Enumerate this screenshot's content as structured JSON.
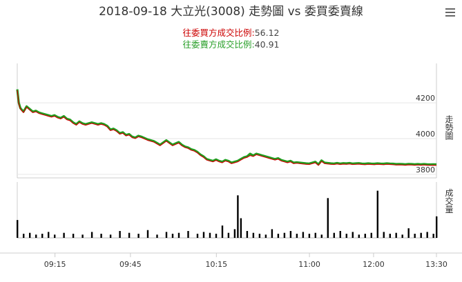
{
  "title": "2018-09-18 大立光(3008) 走勢圖 vs 委買委賣線",
  "ratio_buy_label": "往委買方成交比例:",
  "ratio_buy_value": "56.12",
  "ratio_sell_label": "往委賣方成交比例:",
  "ratio_sell_value": "40.91",
  "menu_icon": "hamburger-menu-icon",
  "colors": {
    "price_line": "#cc0000",
    "order_line": "#1f9e1f",
    "volume": "#000000",
    "grid": "#e6e6e6",
    "axis_text": "#333333"
  },
  "chart_data": {
    "type": "line",
    "x_ticks": [
      "09:15",
      "09:45",
      "10:15",
      "11:00",
      "12:00",
      "13:30"
    ],
    "price_axis": {
      "ylabel": "走勢圖",
      "ticks": [
        3800,
        4000,
        4200
      ],
      "ylim": [
        3780,
        4420
      ]
    },
    "volume_axis": {
      "ylabel": "成交量"
    },
    "series": [
      {
        "key": "price",
        "x": [
          0,
          1,
          2,
          4,
          6,
          8,
          10,
          12,
          14,
          16,
          18,
          20,
          22,
          24,
          26,
          28,
          30,
          32,
          34,
          36,
          38,
          40,
          42,
          44,
          46,
          48,
          50,
          52,
          54,
          56,
          58,
          60,
          62,
          64,
          66,
          68,
          70,
          72,
          74,
          76,
          78,
          80,
          84,
          88,
          92,
          96,
          100,
          104,
          106,
          108,
          110,
          112,
          114,
          116,
          118,
          120,
          122,
          124,
          126,
          128,
          130,
          132,
          134,
          136,
          138,
          140,
          142,
          144,
          146,
          148,
          150,
          152,
          154,
          156,
          158,
          160,
          162,
          164,
          166,
          168,
          170,
          172,
          174,
          176,
          178,
          180,
          182,
          184,
          186,
          188,
          190,
          192,
          194,
          196,
          198,
          200,
          202,
          204,
          206,
          208,
          210,
          212,
          214,
          216,
          218,
          220,
          222,
          224,
          226,
          228,
          230,
          232,
          234,
          236,
          238,
          240,
          242,
          244,
          246,
          248,
          250,
          252,
          254,
          256,
          258,
          260,
          262,
          264,
          266,
          268,
          270
        ],
        "values": [
          4270,
          4195,
          4165,
          4145,
          4175,
          4160,
          4145,
          4150,
          4140,
          4135,
          4130,
          4125,
          4120,
          4125,
          4115,
          4110,
          4120,
          4105,
          4100,
          4085,
          4075,
          4090,
          4080,
          4075,
          4080,
          4085,
          4080,
          4075,
          4080,
          4075,
          4065,
          4045,
          4050,
          4040,
          4025,
          4030,
          4015,
          4020,
          4005,
          4000,
          4010,
          4005,
          3990,
          3980,
          3960,
          3985,
          3960,
          3975,
          3960,
          3950,
          3945,
          3935,
          3930,
          3920,
          3905,
          3895,
          3880,
          3875,
          3870,
          3878,
          3870,
          3865,
          3875,
          3870,
          3860,
          3865,
          3870,
          3880,
          3890,
          3895,
          3905,
          3900,
          3910,
          3905,
          3900,
          3895,
          3890,
          3885,
          3880,
          3885,
          3875,
          3870,
          3865,
          3870,
          3860,
          3862,
          3860,
          3858,
          3856,
          3855,
          3860,
          3865,
          3850,
          3872,
          3860,
          3858,
          3856,
          3855,
          3858,
          3855,
          3857,
          3856,
          3858,
          3855,
          3856,
          3857,
          3855,
          3854,
          3856,
          3855,
          3854,
          3856,
          3855,
          3854,
          3856,
          3855,
          3854,
          3852,
          3853,
          3852,
          3851,
          3853,
          3852,
          3851,
          3852,
          3851,
          3852,
          3851,
          3850,
          3851,
          3850
        ]
      },
      {
        "key": "order_line",
        "x": [
          0,
          1,
          2,
          4,
          6,
          8,
          10,
          12,
          14,
          16,
          18,
          20,
          22,
          24,
          26,
          28,
          30,
          32,
          34,
          36,
          38,
          40,
          42,
          44,
          46,
          48,
          50,
          52,
          54,
          56,
          58,
          60,
          62,
          64,
          66,
          68,
          70,
          72,
          74,
          76,
          78,
          80,
          84,
          88,
          92,
          96,
          100,
          104,
          106,
          108,
          110,
          112,
          114,
          116,
          118,
          120,
          122,
          124,
          126,
          128,
          130,
          132,
          134,
          136,
          138,
          140,
          142,
          144,
          146,
          148,
          150,
          152,
          154,
          156,
          158,
          160,
          162,
          164,
          166,
          168,
          170,
          172,
          174,
          176,
          178,
          180,
          182,
          184,
          186,
          188,
          190,
          192,
          194,
          196,
          198,
          200,
          202,
          204,
          206,
          208,
          210,
          212,
          214,
          216,
          218,
          220,
          222,
          224,
          226,
          228,
          230,
          232,
          234,
          236,
          238,
          240,
          242,
          244,
          246,
          248,
          250,
          252,
          254,
          256,
          258,
          260,
          262,
          264,
          266,
          268,
          270
        ],
        "values": [
          4275,
          4200,
          4170,
          4150,
          4180,
          4165,
          4150,
          4155,
          4145,
          4140,
          4135,
          4130,
          4125,
          4130,
          4120,
          4115,
          4125,
          4110,
          4105,
          4090,
          4080,
          4095,
          4085,
          4080,
          4085,
          4090,
          4085,
          4080,
          4085,
          4080,
          4070,
          4050,
          4055,
          4045,
          4030,
          4035,
          4020,
          4025,
          4010,
          4005,
          4015,
          4010,
          3995,
          3985,
          3965,
          3990,
          3965,
          3980,
          3965,
          3955,
          3950,
          3940,
          3935,
          3925,
          3910,
          3900,
          3885,
          3880,
          3875,
          3883,
          3875,
          3870,
          3880,
          3875,
          3865,
          3870,
          3875,
          3885,
          3895,
          3900,
          3915,
          3905,
          3915,
          3910,
          3905,
          3900,
          3895,
          3890,
          3885,
          3890,
          3880,
          3875,
          3870,
          3875,
          3865,
          3867,
          3865,
          3863,
          3861,
          3860,
          3865,
          3870,
          3855,
          3877,
          3865,
          3863,
          3861,
          3860,
          3863,
          3860,
          3862,
          3861,
          3863,
          3860,
          3861,
          3862,
          3860,
          3859,
          3861,
          3860,
          3859,
          3861,
          3860,
          3859,
          3861,
          3860,
          3859,
          3857,
          3858,
          3857,
          3856,
          3858,
          3857,
          3856,
          3857,
          3856,
          3857,
          3856,
          3855,
          3856,
          3855
        ]
      }
    ],
    "volume": {
      "x": [
        0,
        4,
        8,
        12,
        16,
        20,
        24,
        30,
        36,
        42,
        48,
        54,
        60,
        66,
        72,
        78,
        84,
        90,
        96,
        100,
        104,
        110,
        116,
        120,
        124,
        128,
        132,
        136,
        140,
        142,
        144,
        148,
        152,
        156,
        160,
        164,
        168,
        172,
        176,
        180,
        184,
        188,
        192,
        196,
        200,
        204,
        208,
        212,
        216,
        220,
        224,
        228,
        232,
        236,
        240,
        244,
        248,
        252,
        256,
        260,
        264,
        268,
        270
      ],
      "values": [
        18,
        3,
        4,
        2,
        3,
        5,
        2,
        4,
        3,
        2,
        5,
        3,
        2,
        6,
        4,
        3,
        7,
        2,
        5,
        3,
        4,
        6,
        3,
        5,
        4,
        3,
        12,
        4,
        8,
        45,
        20,
        6,
        4,
        3,
        2,
        8,
        3,
        4,
        6,
        3,
        5,
        3,
        4,
        2,
        42,
        4,
        6,
        3,
        5,
        2,
        3,
        4,
        50,
        5,
        3,
        4,
        2,
        9,
        3,
        4,
        5,
        3,
        22
      ]
    }
  }
}
